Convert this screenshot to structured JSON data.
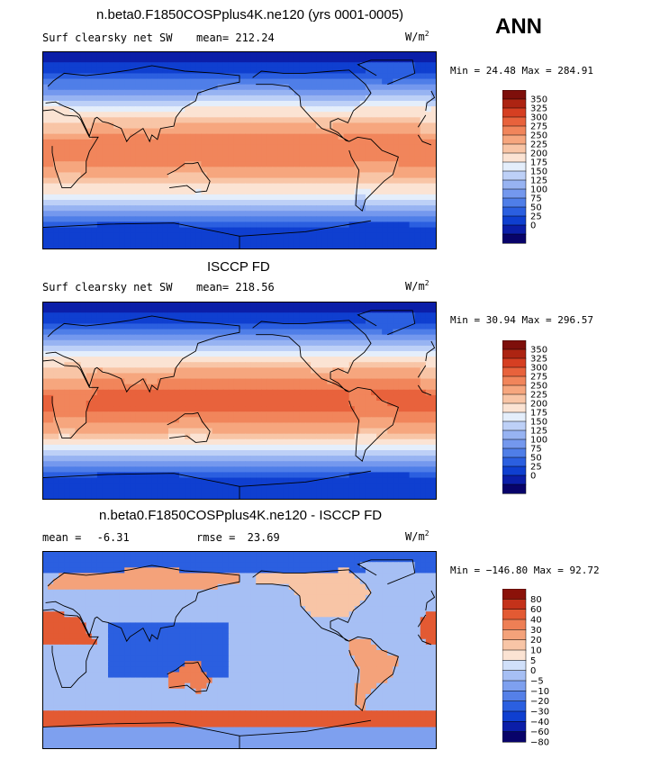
{
  "figure": {
    "season": "ANN",
    "units_base": "W/m",
    "units_exp": "2"
  },
  "colors": {
    "sequential": [
      "#08036a",
      "#0b1ea8",
      "#0f3fd0",
      "#2b5fe0",
      "#4f7ee8",
      "#7498ee",
      "#97b3f2",
      "#bdd0f7",
      "#e4eefb",
      "#fbe3d3",
      "#f8c5a6",
      "#f6a67e",
      "#f1855b",
      "#e8623c",
      "#d63f22",
      "#ad2412",
      "#7e0f0b"
    ],
    "diverging": [
      "#08036a",
      "#0b1ea8",
      "#0f3fd0",
      "#2b5fe0",
      "#5580e8",
      "#7ea0ef",
      "#a6bff4",
      "#d0e0fa",
      "#fbe3d3",
      "#f8c5a6",
      "#f4a27a",
      "#ee7f55",
      "#e35a33",
      "#c4321a",
      "#8b1209"
    ]
  },
  "chart_data": [
    {
      "type": "heatmap",
      "title": "n.beta0.F1850COSPplus4K.ne120 (yrs 0001-0005)",
      "variable": "Surf clearsky net SW",
      "stat_label": "mean=",
      "stat_value": "212.24",
      "minmax": "Min =  24.48 Max = 284.91",
      "field_kind": "sw",
      "amplitude": 1.0,
      "colorbar": {
        "levels": [
          "350",
          "325",
          "300",
          "275",
          "250",
          "225",
          "200",
          "175",
          "150",
          "125",
          "100",
          "75",
          "50",
          "25",
          "0"
        ],
        "palette": "sequential"
      }
    },
    {
      "type": "heatmap",
      "title": "ISCCP FD",
      "variable": "Surf clearsky net SW",
      "stat_label": "mean=",
      "stat_value": "218.56",
      "minmax": "Min =  30.94 Max = 296.57",
      "field_kind": "sw",
      "amplitude": 1.05,
      "colorbar": {
        "levels": [
          "350",
          "325",
          "300",
          "275",
          "250",
          "225",
          "200",
          "175",
          "150",
          "125",
          "100",
          "75",
          "50",
          "25",
          "0"
        ],
        "palette": "sequential"
      }
    },
    {
      "type": "heatmap",
      "title": "n.beta0.F1850COSPplus4K.ne120 - ISCCP FD",
      "variable": "",
      "stat_label": "mean =",
      "stat_value": "-6.31",
      "stat2_label": "rmse =",
      "stat2_value": "23.69",
      "minmax": "Min = −146.80 Max =  92.72",
      "field_kind": "diff",
      "amplitude": 1.0,
      "colorbar": {
        "levels": [
          "80",
          "60",
          "40",
          "30",
          "20",
          "10",
          "5",
          "0",
          "−5",
          "−10",
          "−20",
          "−30",
          "−40",
          "−60",
          "−80"
        ],
        "palette": "diverging"
      }
    }
  ]
}
